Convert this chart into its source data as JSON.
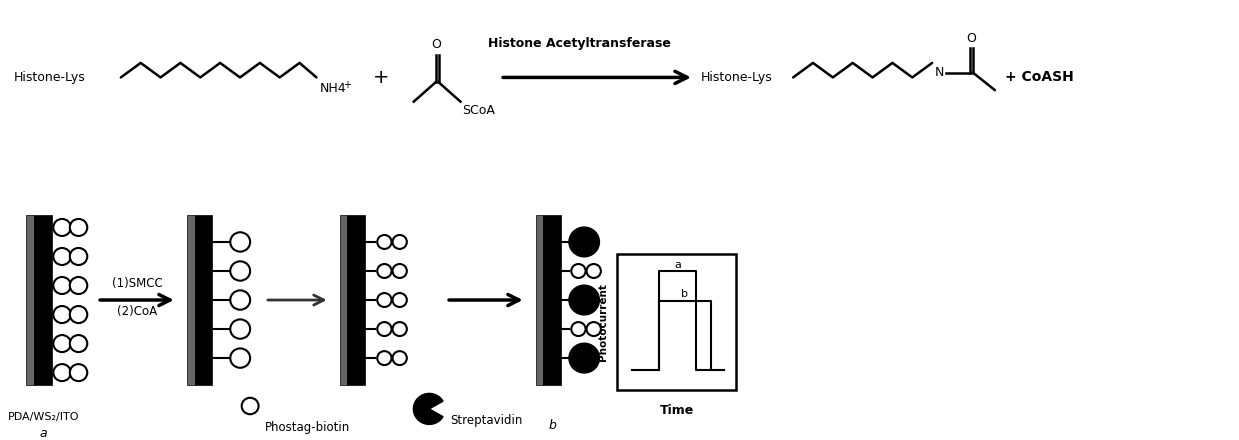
{
  "bg_color": "#ffffff",
  "line_color": "#000000",
  "top_reaction": {
    "histone_lys_label": "Histone-Lys",
    "nh4_label": "NH4+",
    "plus_label": "+",
    "enzyme_label": "Histone Acetyltransferase",
    "scoa_label": "SCoA",
    "coash_label": "+ CoASH",
    "histone_lys2_label": "Histone-Lys",
    "n_label": "N",
    "o_label": "O"
  },
  "bottom_diagram": {
    "step1_label": "(1)SMCC",
    "step2_label": "(2)CoA",
    "phostag_label": "Phostag-biotin",
    "streptavidin_label": "Streptavidin",
    "pda_label": "PDA/WS₂/ITO",
    "a_label": "a",
    "b_label": "b",
    "photocurrent_label": "Photocurrent",
    "time_label": "Time"
  }
}
